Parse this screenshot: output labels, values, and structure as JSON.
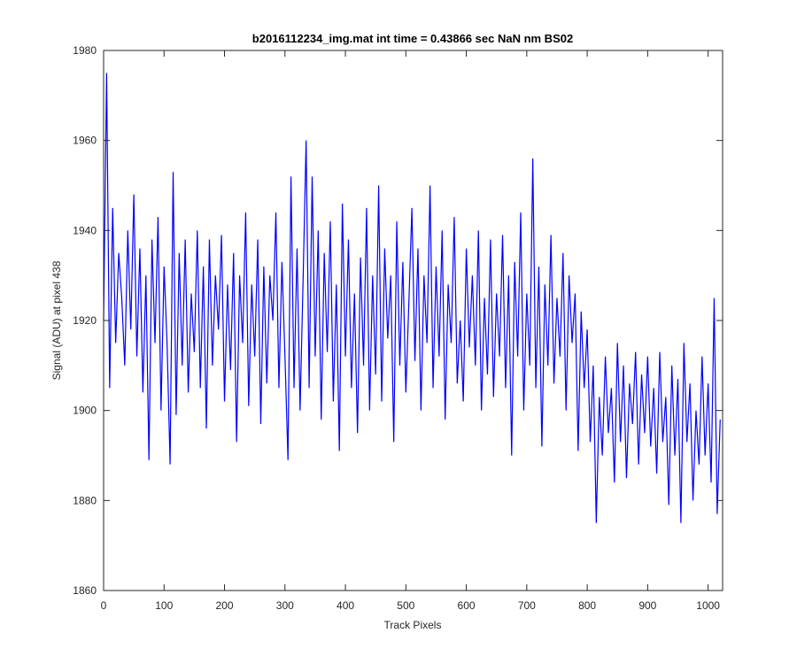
{
  "chart_data": {
    "type": "line",
    "title": "b2016112234_img.mat int time = 0.43866 sec  NaN nm BS02",
    "x_label": "Track Pixels",
    "y_label": "Signal (ADU) at pixel 438",
    "xlim": [
      0,
      1024
    ],
    "ylim": [
      1860,
      1980
    ],
    "xticks": [
      0,
      100,
      200,
      300,
      400,
      500,
      600,
      700,
      800,
      900,
      1000
    ],
    "yticks": [
      1860,
      1880,
      1900,
      1920,
      1940,
      1960,
      1980
    ],
    "x": [
      0,
      5,
      10,
      15,
      20,
      25,
      30,
      35,
      40,
      45,
      50,
      55,
      60,
      65,
      70,
      75,
      80,
      85,
      90,
      95,
      100,
      105,
      110,
      115,
      120,
      125,
      130,
      135,
      140,
      145,
      150,
      155,
      160,
      165,
      170,
      175,
      180,
      185,
      190,
      195,
      200,
      205,
      210,
      215,
      220,
      225,
      230,
      235,
      240,
      245,
      250,
      255,
      260,
      265,
      270,
      275,
      280,
      285,
      290,
      295,
      300,
      305,
      310,
      315,
      320,
      325,
      330,
      335,
      340,
      345,
      350,
      355,
      360,
      365,
      370,
      375,
      380,
      385,
      390,
      395,
      400,
      405,
      410,
      415,
      420,
      425,
      430,
      435,
      440,
      445,
      450,
      455,
      460,
      465,
      470,
      475,
      480,
      485,
      490,
      495,
      500,
      505,
      510,
      515,
      520,
      525,
      530,
      535,
      540,
      545,
      550,
      555,
      560,
      565,
      570,
      575,
      580,
      585,
      590,
      595,
      600,
      605,
      610,
      615,
      620,
      625,
      630,
      635,
      640,
      645,
      650,
      655,
      660,
      665,
      670,
      675,
      680,
      685,
      690,
      695,
      700,
      705,
      710,
      715,
      720,
      725,
      730,
      735,
      740,
      745,
      750,
      755,
      760,
      765,
      770,
      775,
      780,
      785,
      790,
      795,
      800,
      805,
      810,
      815,
      820,
      825,
      830,
      835,
      840,
      845,
      850,
      855,
      860,
      865,
      870,
      875,
      880,
      885,
      890,
      895,
      900,
      905,
      910,
      915,
      920,
      925,
      930,
      935,
      940,
      945,
      950,
      955,
      960,
      965,
      970,
      975,
      980,
      985,
      990,
      995,
      1000,
      1005,
      1010,
      1015,
      1020
    ],
    "series": [
      {
        "color": "#0000ff",
        "values": [
          1920,
          1975,
          1905,
          1945,
          1915,
          1935,
          1925,
          1910,
          1940,
          1918,
          1948,
          1912,
          1936,
          1904,
          1930,
          1889,
          1938,
          1915,
          1943,
          1900,
          1932,
          1915,
          1888,
          1953,
          1899,
          1935,
          1910,
          1938,
          1904,
          1926,
          1913,
          1940,
          1905,
          1932,
          1896,
          1938,
          1910,
          1930,
          1918,
          1939,
          1902,
          1928,
          1909,
          1935,
          1893,
          1930,
          1915,
          1944,
          1901,
          1928,
          1912,
          1938,
          1897,
          1932,
          1906,
          1930,
          1920,
          1944,
          1905,
          1933,
          1912,
          1889,
          1952,
          1905,
          1936,
          1900,
          1929,
          1960,
          1905,
          1952,
          1912,
          1940,
          1898,
          1935,
          1913,
          1942,
          1902,
          1928,
          1891,
          1946,
          1912,
          1938,
          1905,
          1926,
          1895,
          1934,
          1910,
          1945,
          1900,
          1930,
          1908,
          1950,
          1902,
          1936,
          1916,
          1930,
          1893,
          1942,
          1910,
          1933,
          1904,
          1924,
          1945,
          1911,
          1936,
          1900,
          1930,
          1915,
          1950,
          1905,
          1932,
          1912,
          1940,
          1898,
          1928,
          1915,
          1943,
          1906,
          1920,
          1902,
          1936,
          1914,
          1930,
          1910,
          1940,
          1900,
          1925,
          1908,
          1938,
          1903,
          1926,
          1912,
          1939,
          1905,
          1930,
          1890,
          1933,
          1912,
          1944,
          1900,
          1926,
          1910,
          1956,
          1905,
          1932,
          1892,
          1928,
          1910,
          1939,
          1906,
          1925,
          1912,
          1935,
          1900,
          1930,
          1915,
          1926,
          1891,
          1922,
          1905,
          1918,
          1893,
          1910,
          1875,
          1903,
          1890,
          1912,
          1895,
          1905,
          1884,
          1915,
          1893,
          1910,
          1885,
          1906,
          1897,
          1913,
          1888,
          1908,
          1895,
          1912,
          1892,
          1905,
          1886,
          1913,
          1893,
          1903,
          1879,
          1910,
          1890,
          1907,
          1875,
          1915,
          1893,
          1906,
          1880,
          1900,
          1888,
          1912,
          1890,
          1906,
          1884,
          1925,
          1877,
          1898
        ]
      }
    ]
  }
}
